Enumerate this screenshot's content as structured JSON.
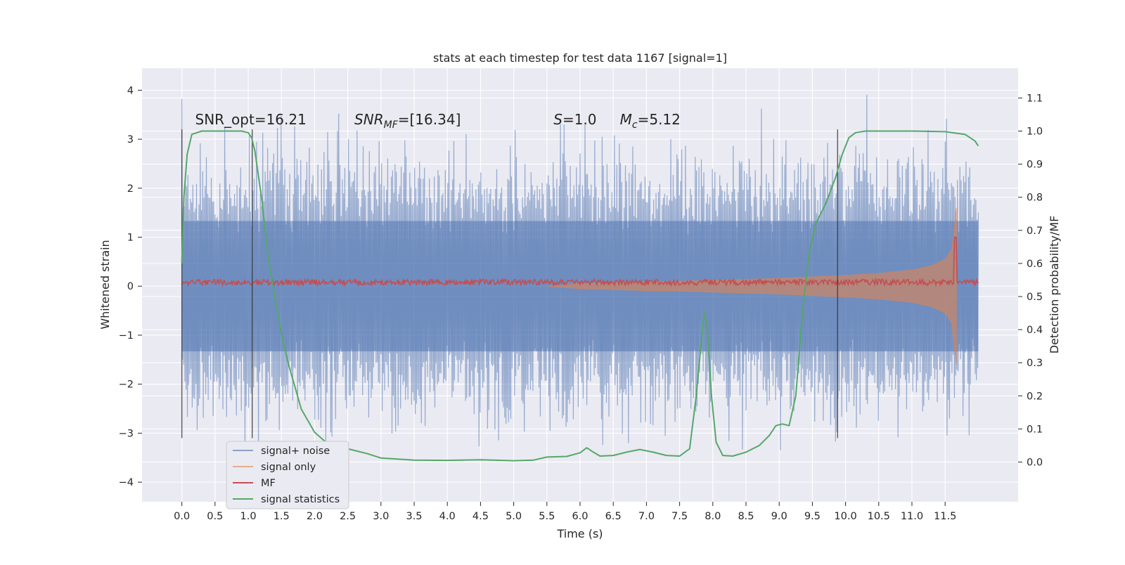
{
  "chart_data": {
    "type": "line",
    "title": "stats at each timestep for test data 1167 [signal=1]",
    "xlabel": "Time (s)",
    "ylabel": "Whitened strain",
    "y2label": "Detection probability/MF",
    "xlim": [
      -0.6,
      12.6
    ],
    "ylim": [
      -4.4,
      4.45
    ],
    "y2lim": [
      -0.12,
      1.19
    ],
    "x_ticks": [
      0.0,
      0.5,
      1.0,
      1.5,
      2.0,
      2.5,
      3.0,
      3.5,
      4.0,
      4.5,
      5.0,
      5.5,
      6.0,
      6.5,
      7.0,
      7.5,
      8.0,
      8.5,
      9.0,
      9.5,
      10.0,
      10.5,
      11.0,
      11.5
    ],
    "x_tick_labels": [
      "0.0",
      "0.5",
      "1.0",
      "1.5",
      "2.0",
      "2.5",
      "3.0",
      "3.5",
      "4.0",
      "4.5",
      "5.0",
      "5.5",
      "6.0",
      "6.5",
      "7.0",
      "7.5",
      "8.0",
      "8.5",
      "9.0",
      "9.5",
      "10.0",
      "10.5",
      "11.0",
      "11.5"
    ],
    "y_ticks": [
      -4,
      -3,
      -2,
      -1,
      0,
      1,
      2,
      3,
      4
    ],
    "y_tick_labels": [
      "−4",
      "−3",
      "−2",
      "−1",
      "0",
      "1",
      "2",
      "3",
      "4"
    ],
    "y2_ticks": [
      0.0,
      0.1,
      0.2,
      0.3,
      0.4,
      0.5,
      0.6,
      0.7,
      0.8,
      0.9,
      1.0,
      1.1
    ],
    "y2_tick_labels": [
      "0.0",
      "0.1",
      "0.2",
      "0.3",
      "0.4",
      "0.5",
      "0.6",
      "0.7",
      "0.8",
      "0.9",
      "1.0",
      "1.1"
    ],
    "grid": true,
    "legend_position": "lower-left",
    "annotations": [
      {
        "id": "snr-opt",
        "text": "SNR_opt=16.21",
        "x": 0.2,
        "y": 3.3
      },
      {
        "id": "snr-mf",
        "text": "SNR_MF=[16.34]",
        "x": 2.6,
        "y": 3.3
      },
      {
        "id": "s-value",
        "text": "S=1.0",
        "x": 5.6,
        "y": 3.3
      },
      {
        "id": "mc-value",
        "text": "M_c=5.12",
        "x": 6.6,
        "y": 3.3
      }
    ],
    "vertical_lines": [
      0.0,
      1.06,
      9.88
    ],
    "vertical_line_range": [
      -3.1,
      3.2
    ],
    "series": [
      {
        "name": "signal+ noise",
        "color": "#4c72b0",
        "axis": "left",
        "style": "noise-band",
        "x_range": [
          0.0,
          12.0
        ],
        "typical_amplitude": 1.3,
        "peak_min": -3.95,
        "peak_max": 4.1
      },
      {
        "name": "signal only",
        "color": "#dd8452",
        "axis": "left",
        "style": "chirp",
        "x": [
          5.5,
          6.0,
          6.5,
          7.0,
          7.5,
          8.0,
          8.5,
          9.0,
          9.5,
          10.0,
          10.5,
          11.0,
          11.3,
          11.5,
          11.6,
          11.67
        ],
        "envelope": [
          0.0,
          0.05,
          0.07,
          0.09,
          0.1,
          0.12,
          0.14,
          0.16,
          0.19,
          0.22,
          0.26,
          0.33,
          0.42,
          0.55,
          0.75,
          1.6
        ]
      },
      {
        "name": "MF",
        "color": "#c44e52",
        "axis": "left",
        "style": "noise-band",
        "x_range": [
          0.0,
          12.0
        ],
        "center": 0.08,
        "typical_amplitude": 0.06,
        "spike_x": 11.65,
        "spike_max": 1.0
      },
      {
        "name": "signal statistics",
        "color": "#55a868",
        "axis": "right",
        "style": "line",
        "x": [
          0.0,
          0.03,
          0.08,
          0.15,
          0.3,
          0.6,
          0.9,
          1.0,
          1.05,
          1.1,
          1.2,
          1.3,
          1.4,
          1.5,
          1.6,
          1.7,
          1.8,
          2.0,
          2.2,
          2.5,
          2.8,
          3.0,
          3.5,
          4.0,
          4.5,
          5.0,
          5.3,
          5.5,
          5.8,
          6.0,
          6.1,
          6.2,
          6.3,
          6.5,
          6.7,
          6.9,
          7.1,
          7.3,
          7.5,
          7.65,
          7.75,
          7.82,
          7.87,
          7.92,
          7.98,
          8.05,
          8.15,
          8.3,
          8.5,
          8.7,
          8.85,
          8.95,
          9.05,
          9.15,
          9.25,
          9.35,
          9.45,
          9.55,
          9.7,
          9.85,
          9.95,
          10.05,
          10.15,
          10.3,
          10.6,
          11.0,
          11.5,
          11.8,
          11.95,
          12.0
        ],
        "values": [
          0.6,
          0.8,
          0.93,
          0.99,
          1.0,
          1.0,
          1.0,
          0.995,
          0.98,
          0.94,
          0.8,
          0.62,
          0.5,
          0.39,
          0.3,
          0.23,
          0.16,
          0.09,
          0.055,
          0.04,
          0.025,
          0.012,
          0.006,
          0.005,
          0.007,
          0.004,
          0.006,
          0.015,
          0.017,
          0.028,
          0.043,
          0.03,
          0.018,
          0.02,
          0.03,
          0.038,
          0.03,
          0.02,
          0.018,
          0.04,
          0.2,
          0.35,
          0.455,
          0.4,
          0.2,
          0.06,
          0.02,
          0.018,
          0.03,
          0.05,
          0.08,
          0.11,
          0.115,
          0.11,
          0.2,
          0.45,
          0.63,
          0.72,
          0.78,
          0.86,
          0.93,
          0.98,
          0.995,
          1.0,
          1.0,
          1.0,
          0.998,
          0.99,
          0.97,
          0.955
        ]
      }
    ]
  }
}
